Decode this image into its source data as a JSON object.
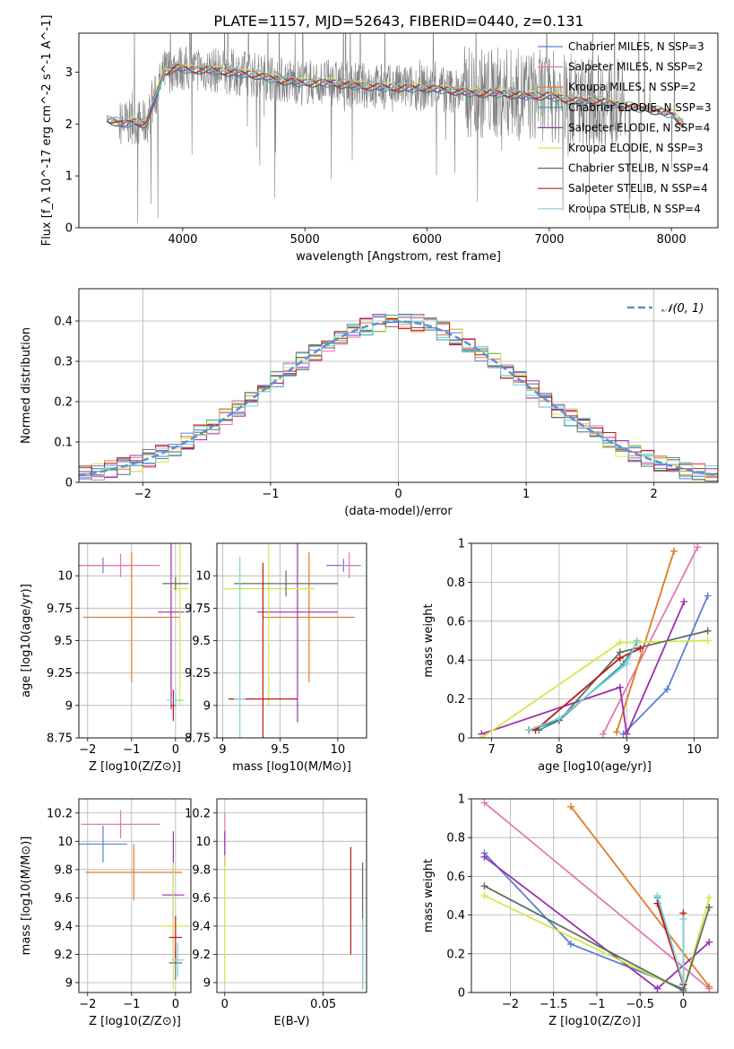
{
  "figure": {
    "title": "PLATE=1157, MJD=52643, FIBERID=0440, z=0.131"
  },
  "chart_data": [
    {
      "id": "spectrum",
      "type": "line",
      "title": "PLATE=1157, MJD=52643, FIBERID=0440, z=0.131",
      "xlabel": "wavelength [Angstrom, rest frame]",
      "ylabel": "Flux [f_λ 10^-17 erg cm^-2 s^-1 A^-1]",
      "xlim": [
        3150,
        8380
      ],
      "ylim": [
        0,
        3.75
      ],
      "xticks": [
        4000,
        5000,
        6000,
        7000,
        8000
      ],
      "yticks": [
        0,
        1,
        2,
        3
      ],
      "grid": false,
      "legend": "top-right",
      "data_continuum": {
        "x": [
          3380,
          3450,
          3500,
          3600,
          3700,
          3780,
          3850,
          3950,
          4050,
          4200,
          4400,
          4600,
          4800,
          5000,
          5200,
          5400,
          5600,
          5800,
          6000,
          6200,
          6400,
          6600,
          6800,
          7000,
          7200,
          7400,
          7600,
          7800,
          8000,
          8100
        ],
        "y": [
          2.1,
          2.05,
          2.0,
          2.05,
          2.0,
          2.55,
          3.0,
          3.1,
          3.05,
          3.05,
          3.0,
          2.95,
          2.85,
          2.8,
          2.8,
          2.75,
          2.72,
          2.7,
          2.7,
          2.65,
          2.6,
          2.6,
          2.55,
          2.55,
          2.45,
          2.45,
          2.35,
          2.3,
          2.2,
          2.0
        ]
      },
      "series": [
        {
          "name": "Chabrier MILES, N_SSP=3",
          "color": "#5b7fd6"
        },
        {
          "name": "Salpeter MILES, N_SSP=2",
          "color": "#e678b0"
        },
        {
          "name": "Kroupa MILES, N_SSP=2",
          "color": "#e07b27"
        },
        {
          "name": "Chabrier ELODIE, N_SSP=3",
          "color": "#2aa0a0"
        },
        {
          "name": "Salpeter ELODIE, N_SSP=4",
          "color": "#9b30b0"
        },
        {
          "name": "Kroupa ELODIE, N_SSP=3",
          "color": "#d4e84a"
        },
        {
          "name": "Chabrier STELIB, N_SSP=4",
          "color": "#5b7060"
        },
        {
          "name": "Salpeter STELIB, N_SSP=4",
          "color": "#c01818"
        },
        {
          "name": "Kroupa STELIB, N_SSP=4",
          "color": "#7fd0d8"
        }
      ]
    },
    {
      "id": "residuals",
      "type": "line",
      "xlabel": "(data-model)/error",
      "ylabel": "Normed distribution",
      "xlim": [
        -2.5,
        2.5
      ],
      "ylim": [
        0,
        0.48
      ],
      "xticks": [
        -2,
        -1,
        0,
        1,
        2
      ],
      "yticks": [
        0.0,
        0.1,
        0.2,
        0.3,
        0.4
      ],
      "grid": true,
      "legend": "top-right",
      "series": [
        {
          "name": "𝒩(0, 1)",
          "style": "dashed",
          "color": "#5b8fd6"
        }
      ]
    },
    {
      "id": "age_vs_Z",
      "type": "scatter",
      "xlabel": "Z [log10(Z/Z⊙)]",
      "ylabel": "age  [log10(age/yr)]",
      "xlim": [
        -2.2,
        0.35
      ],
      "ylim": [
        8.75,
        10.25
      ],
      "xticks": [
        -2,
        -1,
        0
      ],
      "yticks": [
        8.75,
        9.0,
        9.25,
        9.5,
        9.75,
        10.0
      ],
      "grid": true,
      "points": [
        {
          "x": -1.65,
          "y": 10.08,
          "xerr": 0.55,
          "yerr": 0.06,
          "color": "#5b7fd6"
        },
        {
          "x": -1.25,
          "y": 10.08,
          "xerr": 0.9,
          "yerr": 0.09,
          "color": "#e678b0"
        },
        {
          "x": -1.0,
          "y": 9.68,
          "xerr": 1.1,
          "yerr": 0.5,
          "color": "#e07b27"
        },
        {
          "x": -0.1,
          "y": 9.72,
          "xerr": 0.3,
          "yerr": 0.75,
          "color": "#9b30b0"
        },
        {
          "x": 0.1,
          "y": 9.9,
          "xerr": 0.2,
          "yerr": 0.9,
          "color": "#d4e84a"
        },
        {
          "x": 0.0,
          "y": 9.94,
          "xerr": 0.3,
          "yerr": 0.05,
          "color": "#5b7060"
        },
        {
          "x": -0.05,
          "y": 9.0,
          "xerr": 0.05,
          "yerr": 0.12,
          "color": "#c01818"
        },
        {
          "x": 0.0,
          "y": 9.04,
          "xerr": 0.2,
          "yerr": 0.06,
          "color": "#7fd0d8"
        }
      ]
    },
    {
      "id": "age_vs_mass",
      "type": "scatter",
      "xlabel": "mass [log10(M/M⊙)]",
      "ylabel": "",
      "xlim": [
        8.95,
        10.25
      ],
      "ylim": [
        8.75,
        10.25
      ],
      "xticks": [
        9.0,
        9.5,
        10.0
      ],
      "yticks": [
        8.75,
        9.0,
        9.25,
        9.5,
        9.75,
        10.0
      ],
      "grid": true,
      "points": [
        {
          "x": 10.05,
          "y": 10.08,
          "xerr": 0.15,
          "yerr": 0.05,
          "color": "#5b7fd6"
        },
        {
          "x": 10.1,
          "y": 10.08,
          "xerr": 0.08,
          "yerr": 0.1,
          "color": "#e678b0"
        },
        {
          "x": 9.75,
          "y": 9.68,
          "xerr": 0.4,
          "yerr": 0.5,
          "color": "#e07b27"
        },
        {
          "x": 9.65,
          "y": 9.72,
          "xerr": 0.35,
          "yerr": 0.85,
          "color": "#9b30b0"
        },
        {
          "x": 9.4,
          "y": 9.9,
          "xerr": 0.4,
          "yerr": 0.9,
          "color": "#d4e84a"
        },
        {
          "x": 9.55,
          "y": 9.94,
          "xerr": 0.45,
          "yerr": 0.1,
          "color": "#5b7060"
        },
        {
          "x": 9.35,
          "y": 9.05,
          "xerr": 0.3,
          "yerr": 1.05,
          "color": "#c01818"
        },
        {
          "x": 9.15,
          "y": 9.05,
          "xerr": 0.05,
          "yerr": 1.1,
          "color": "#7fd0d8"
        }
      ]
    },
    {
      "id": "weight_vs_age",
      "type": "line",
      "xlabel": "age  [log10(age/yr)]",
      "ylabel": "mass weight",
      "xlim": [
        6.7,
        10.35
      ],
      "ylim": [
        0,
        1.0
      ],
      "xticks": [
        7,
        8,
        9,
        10
      ],
      "yticks": [
        0.0,
        0.2,
        0.4,
        0.6,
        0.8,
        1.0
      ],
      "grid": true,
      "series": [
        {
          "name": "Chabrier MILES",
          "color": "#5b7fd6",
          "x": [
            8.95,
            9.6,
            10.2
          ],
          "y": [
            0.02,
            0.25,
            0.73
          ]
        },
        {
          "name": "Salpeter MILES",
          "color": "#e678b0",
          "x": [
            8.65,
            10.05
          ],
          "y": [
            0.02,
            0.98
          ]
        },
        {
          "name": "Kroupa MILES",
          "color": "#e07b27",
          "x": [
            8.85,
            9.7
          ],
          "y": [
            0.03,
            0.96
          ]
        },
        {
          "name": "Chabrier ELODIE",
          "color": "#2aa0a0",
          "x": [
            7.7,
            8.0,
            8.95,
            9.15
          ],
          "y": [
            0.04,
            0.09,
            0.38,
            0.49
          ]
        },
        {
          "name": "Salpeter ELODIE",
          "color": "#9b30b0",
          "x": [
            6.85,
            8.9,
            9.0,
            9.85
          ],
          "y": [
            0.02,
            0.26,
            0.02,
            0.7
          ]
        },
        {
          "name": "Kroupa ELODIE",
          "color": "#d4e84a",
          "x": [
            6.85,
            8.9,
            10.2
          ],
          "y": [
            0.0,
            0.49,
            0.5
          ]
        },
        {
          "name": "Chabrier STELIB",
          "color": "#5b7060",
          "x": [
            7.55,
            8.0,
            8.9,
            10.2
          ],
          "y": [
            0.04,
            0.09,
            0.44,
            0.55
          ]
        },
        {
          "name": "Salpeter STELIB",
          "color": "#c01818",
          "x": [
            7.55,
            7.65,
            8.9,
            9.2
          ],
          "y": [
            0.04,
            0.04,
            0.41,
            0.46
          ]
        },
        {
          "name": "Kroupa STELIB",
          "color": "#7fd0d8",
          "x": [
            7.55,
            8.0,
            9.0,
            9.15
          ],
          "y": [
            0.04,
            0.1,
            0.38,
            0.5
          ]
        }
      ]
    },
    {
      "id": "mass_vs_Z",
      "type": "scatter",
      "xlabel": "Z [log10(Z/Z⊙)]",
      "ylabel": "mass [log10(M/M⊙)]",
      "xlim": [
        -2.2,
        0.35
      ],
      "ylim": [
        8.93,
        10.3
      ],
      "xticks": [
        -2,
        -1,
        0
      ],
      "yticks": [
        9.0,
        9.2,
        9.4,
        9.6,
        9.8,
        10.0,
        10.2
      ],
      "grid": true,
      "points": [
        {
          "x": -1.65,
          "y": 9.98,
          "xerr": 0.55,
          "yerr": 0.13,
          "color": "#5b7fd6"
        },
        {
          "x": -1.25,
          "y": 10.12,
          "xerr": 0.9,
          "yerr": 0.1,
          "color": "#e678b0"
        },
        {
          "x": -0.95,
          "y": 9.78,
          "xerr": 1.1,
          "yerr": 0.2,
          "color": "#e07b27"
        },
        {
          "x": -0.05,
          "y": 9.62,
          "xerr": 0.25,
          "yerr": 0.45,
          "color": "#9b30b0"
        },
        {
          "x": -0.05,
          "y": 9.4,
          "xerr": 0.3,
          "yerr": 0.45,
          "color": "#d4e84a"
        },
        {
          "x": 0.0,
          "y": 9.14,
          "xerr": 0.15,
          "yerr": 0.12,
          "color": "#5b7060"
        },
        {
          "x": 0.0,
          "y": 9.32,
          "xerr": 0.15,
          "yerr": 0.15,
          "color": "#c01818"
        },
        {
          "x": 0.05,
          "y": 9.16,
          "xerr": 0.15,
          "yerr": 0.12,
          "color": "#7fd0d8"
        }
      ]
    },
    {
      "id": "mass_vs_ebv",
      "type": "scatter",
      "xlabel": "E(B-V)",
      "ylabel": "",
      "xlim": [
        -0.004,
        0.072
      ],
      "ylim": [
        8.93,
        10.3
      ],
      "xticks": [
        0.0,
        0.05
      ],
      "yticks": [
        9.0,
        9.2,
        9.4,
        9.6,
        9.8,
        10.0,
        10.2
      ],
      "grid": true,
      "points": [
        {
          "x": 0.0,
          "y": 10.08,
          "xerr": 0.0,
          "yerr": 0.12,
          "color": "#e678b0"
        },
        {
          "x": 0.0,
          "y": 9.95,
          "xerr": 0.0,
          "yerr": 0.12,
          "color": "#9b30b0"
        },
        {
          "x": 0.0,
          "y": 9.45,
          "xerr": 0.0,
          "yerr": 0.45,
          "color": "#d4e84a"
        },
        {
          "x": 0.064,
          "y": 9.58,
          "xerr": 0.0,
          "yerr": 0.38,
          "color": "#c01818"
        },
        {
          "x": 0.07,
          "y": 9.4,
          "xerr": 0.0,
          "yerr": 0.45,
          "color": "#5b7060"
        },
        {
          "x": 0.07,
          "y": 9.2,
          "xerr": 0.0,
          "yerr": 0.25,
          "color": "#7fd0d8"
        }
      ]
    },
    {
      "id": "weight_vs_Z",
      "type": "line",
      "xlabel": "Z [log10(Z/Z⊙)]",
      "ylabel": "mass weight",
      "xlim": [
        -2.45,
        0.4
      ],
      "ylim": [
        0,
        1.0
      ],
      "xticks": [
        -2.0,
        -1.5,
        -1.0,
        -0.5,
        0.0
      ],
      "yticks": [
        0.0,
        0.2,
        0.4,
        0.6,
        0.8,
        1.0
      ],
      "grid": true,
      "series": [
        {
          "name": "Chabrier MILES",
          "color": "#5b7fd6",
          "x": [
            -2.3,
            -1.3,
            0.0
          ],
          "y": [
            0.72,
            0.25,
            0.02
          ]
        },
        {
          "name": "Salpeter MILES",
          "color": "#e678b0",
          "x": [
            -2.3,
            0.3
          ],
          "y": [
            0.98,
            0.02
          ]
        },
        {
          "name": "Kroupa MILES",
          "color": "#e07b27",
          "x": [
            -1.3,
            0.3
          ],
          "y": [
            0.96,
            0.03
          ]
        },
        {
          "name": "Chabrier ELODIE",
          "color": "#2aa0a0",
          "x": [
            -0.3,
            0.0
          ],
          "y": [
            0.49,
            0.04
          ]
        },
        {
          "name": "Salpeter ELODIE",
          "color": "#9b30b0",
          "x": [
            -2.3,
            -0.3,
            0.3
          ],
          "y": [
            0.7,
            0.02,
            0.26
          ]
        },
        {
          "name": "Kroupa ELODIE",
          "color": "#d4e84a",
          "x": [
            -2.3,
            0.0,
            0.3
          ],
          "y": [
            0.5,
            0.01,
            0.49
          ]
        },
        {
          "name": "Chabrier STELIB",
          "color": "#5b7060",
          "x": [
            -2.3,
            0.0,
            0.3
          ],
          "y": [
            0.55,
            0.01,
            0.44
          ]
        },
        {
          "name": "Salpeter STELIB",
          "color": "#c01818",
          "x": [
            -0.3,
            0.0,
            0.0
          ],
          "y": [
            0.46,
            0.04,
            0.41
          ]
        },
        {
          "name": "Kroupa STELIB",
          "color": "#7fd0d8",
          "x": [
            -0.3,
            0.0,
            0.0
          ],
          "y": [
            0.5,
            0.05,
            0.38
          ]
        }
      ]
    }
  ]
}
